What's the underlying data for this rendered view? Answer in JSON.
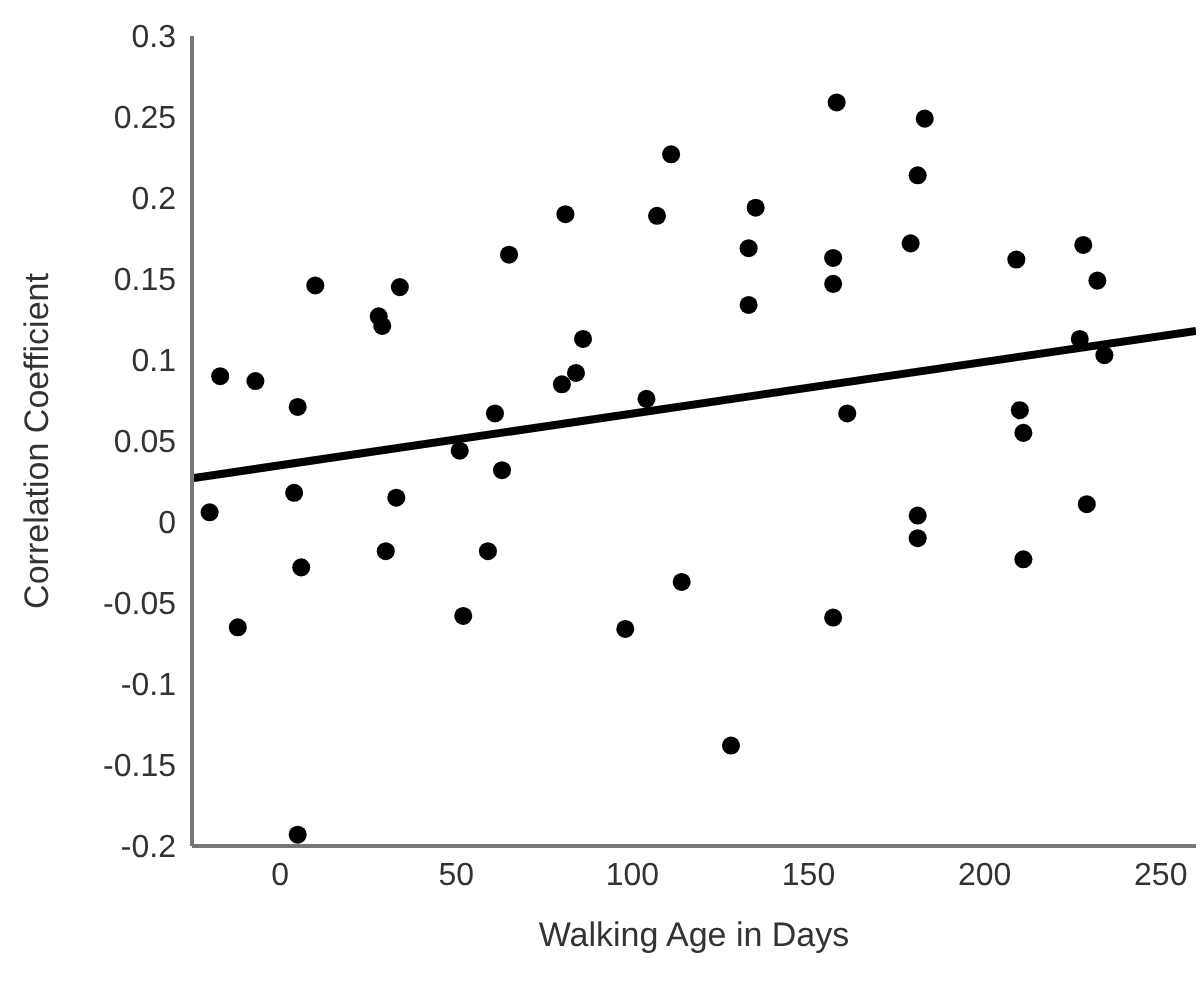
{
  "chart_data": {
    "type": "scatter",
    "xlabel": "Walking Age in Days",
    "ylabel": "Correlation Coefficient",
    "xlim": [
      -25,
      260
    ],
    "xticks": [
      0,
      50,
      100,
      150,
      200,
      250
    ],
    "ylim": [
      -0.2,
      0.3
    ],
    "yticks": [
      -0.2,
      -0.15,
      -0.1,
      -0.05,
      0,
      0.05,
      0.1,
      0.15,
      0.2,
      0.25,
      0.3
    ],
    "grid": false,
    "series": [
      {
        "type": "scatter",
        "marker": "circle",
        "color": "#000000",
        "x": [
          -20,
          -17,
          -12,
          -7,
          4,
          5,
          6,
          5,
          10,
          28,
          29,
          33,
          34,
          30,
          52,
          51,
          59,
          63,
          61,
          65,
          80,
          84,
          86,
          81,
          98,
          114,
          104,
          107,
          111,
          158,
          183,
          135,
          133,
          133,
          157,
          157,
          181,
          179,
          209,
          228,
          232,
          227,
          234,
          161,
          210,
          211,
          128,
          157,
          181,
          181,
          211,
          229
        ],
        "values": [
          0.006,
          0.09,
          -0.065,
          0.087,
          0.018,
          0.071,
          -0.028,
          -0.193,
          0.146,
          0.127,
          0.121,
          0.015,
          0.145,
          -0.018,
          -0.058,
          0.044,
          -0.018,
          0.032,
          0.067,
          0.165,
          0.085,
          0.092,
          0.113,
          0.19,
          -0.066,
          -0.037,
          0.076,
          0.189,
          0.227,
          0.259,
          0.249,
          0.194,
          0.169,
          0.134,
          0.163,
          0.147,
          0.214,
          0.172,
          0.162,
          0.171,
          0.149,
          0.113,
          0.103,
          0.067,
          0.069,
          0.055,
          -0.138,
          -0.059,
          0.004,
          -0.01,
          -0.023,
          0.011
        ]
      },
      {
        "type": "line",
        "color": "#000000",
        "x": [
          -25,
          260
        ],
        "values": [
          0.027,
          0.118
        ]
      }
    ]
  }
}
